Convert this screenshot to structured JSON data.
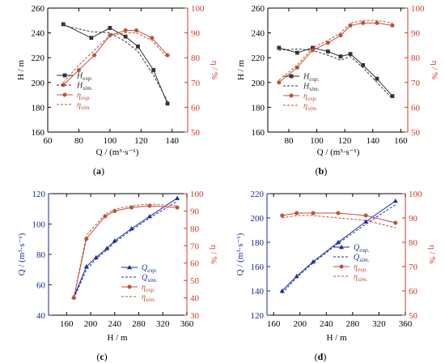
{
  "colors": {
    "axis": "#000000",
    "eta_axis": "#cc3b2b",
    "q_axis": "#1a2a8c",
    "h_exp": "#333333",
    "h_sim": "#333333",
    "eta_exp": "#c0503a",
    "eta_sim": "#c0503a",
    "q_exp": "#1a2aa0",
    "q_sim": "#1a2aa0"
  },
  "chart_data": [
    {
      "type": "line",
      "panel_label": "(a)",
      "xlabel": "Q / (m³·s⁻¹)",
      "ylabel_left": "H / m",
      "ylabel_right": "η / %",
      "xlim": [
        60,
        150
      ],
      "xticks": [
        60,
        80,
        100,
        120,
        140
      ],
      "ylim_left": [
        160,
        260
      ],
      "yticks_left": [
        160,
        180,
        200,
        220,
        240,
        260
      ],
      "ylim_right": [
        50,
        100
      ],
      "yticks_right": [
        50,
        60,
        70,
        80,
        90,
        100
      ],
      "legend_position": "bottom-left",
      "series": [
        {
          "name": "Hexp.",
          "label_main": "H",
          "label_sub": "exp.",
          "axis": "left",
          "color_key": "h_exp",
          "dashed": false,
          "marker": "square",
          "x": [
            70,
            88,
            100,
            110,
            118,
            128,
            137
          ],
          "y": [
            247,
            236,
            244,
            237,
            229,
            210,
            183
          ]
        },
        {
          "name": "Hsim.",
          "label_main": "H",
          "label_sub": "sim.",
          "axis": "left",
          "color_key": "h_sim",
          "dashed": true,
          "marker": "none",
          "x": [
            70,
            88,
            100,
            110,
            118,
            128,
            137
          ],
          "y": [
            246,
            241,
            240,
            233,
            225,
            206,
            185
          ]
        },
        {
          "name": "ηexp.",
          "label_main": "η",
          "label_sub": "exp.",
          "axis": "right",
          "color_key": "eta_exp",
          "dashed": false,
          "marker": "circle",
          "x": [
            70,
            80,
            90,
            100,
            110,
            117,
            127,
            137
          ],
          "y": [
            69,
            75,
            81,
            89,
            91,
            91,
            88,
            81
          ]
        },
        {
          "name": "ηsim.",
          "label_main": "η",
          "label_sub": "sim.",
          "axis": "right",
          "color_key": "eta_sim",
          "dashed": true,
          "marker": "none",
          "x": [
            70,
            80,
            90,
            100,
            110,
            117,
            127,
            137
          ],
          "y": [
            70,
            77,
            83,
            89,
            90,
            90,
            87,
            80
          ]
        }
      ]
    },
    {
      "type": "line",
      "panel_label": "(b)",
      "xlabel": "Q / (m³·s⁻¹)",
      "ylabel_left": "H / m",
      "ylabel_right": "η / %",
      "xlim": [
        65,
        165
      ],
      "xticks": [
        80,
        100,
        120,
        140,
        160
      ],
      "ylim_left": [
        160,
        260
      ],
      "yticks_left": [
        160,
        180,
        200,
        220,
        240,
        260
      ],
      "ylim_right": [
        50,
        100
      ],
      "yticks_right": [
        50,
        60,
        70,
        80,
        90,
        100
      ],
      "legend_position": "bottom-center",
      "series": [
        {
          "name": "Hexp.",
          "label_main": "H",
          "label_sub": "exp.",
          "axis": "left",
          "color_key": "h_exp",
          "dashed": false,
          "marker": "square",
          "x": [
            73,
            86,
            97,
            108,
            117,
            124,
            133,
            143,
            154
          ],
          "y": [
            228,
            224,
            228,
            225,
            221,
            223,
            214,
            203,
            189
          ]
        },
        {
          "name": "Hsim.",
          "label_main": "H",
          "label_sub": "sim.",
          "axis": "left",
          "color_key": "h_sim",
          "dashed": true,
          "marker": "none",
          "x": [
            73,
            86,
            97,
            108,
            117,
            124,
            133,
            143,
            154
          ],
          "y": [
            226,
            227,
            226,
            222,
            218,
            221,
            212,
            200,
            187
          ]
        },
        {
          "name": "ηexp.",
          "label_main": "η",
          "label_sub": "exp.",
          "axis": "right",
          "color_key": "eta_exp",
          "dashed": false,
          "marker": "circle",
          "x": [
            73,
            86,
            97,
            108,
            117,
            124,
            133,
            143,
            154
          ],
          "y": [
            70,
            76,
            83,
            86,
            89,
            93,
            94,
            94,
            93
          ]
        },
        {
          "name": "ηsim.",
          "label_main": "η",
          "label_sub": "sim.",
          "axis": "right",
          "color_key": "eta_sim",
          "dashed": true,
          "marker": "none",
          "x": [
            73,
            86,
            97,
            108,
            117,
            124,
            133,
            143,
            154
          ],
          "y": [
            71,
            77,
            84,
            87,
            90,
            94,
            95,
            95,
            94
          ]
        }
      ]
    },
    {
      "type": "line",
      "panel_label": "(c)",
      "xlabel": "H / m",
      "ylabel_left": "Q / (m³·s⁻¹)",
      "ylabel_right": "η / %",
      "xlim": [
        130,
        360
      ],
      "xticks": [
        160,
        200,
        240,
        280,
        320,
        360
      ],
      "ylim_left": [
        40,
        120
      ],
      "yticks_left": [
        40,
        60,
        80,
        100,
        120
      ],
      "ylim_right": [
        30,
        100
      ],
      "yticks_right": [
        30,
        40,
        50,
        60,
        70,
        80,
        90,
        100
      ],
      "legend_position": "bottom-right",
      "series": [
        {
          "name": "Qexp.",
          "label_main": "Q",
          "label_sub": "exp.",
          "axis": "left",
          "color_key": "q_exp",
          "dashed": false,
          "marker": "triangle",
          "x": [
            172,
            193,
            209,
            227,
            240,
            268,
            298,
            344
          ],
          "y": [
            52,
            72,
            78,
            84,
            89,
            97,
            105,
            117
          ]
        },
        {
          "name": "Qsim.",
          "label_main": "Q",
          "label_sub": "sim.",
          "axis": "left",
          "color_key": "q_sim",
          "dashed": true,
          "marker": "none",
          "x": [
            172,
            193,
            209,
            227,
            240,
            268,
            298,
            344
          ],
          "y": [
            51,
            70,
            77,
            83,
            88,
            96,
            104,
            115
          ]
        },
        {
          "name": "ηexp.",
          "label_main": "η",
          "label_sub": "exp.",
          "axis": "right",
          "color_key": "eta_exp",
          "dashed": false,
          "marker": "circle",
          "x": [
            172,
            193,
            224,
            240,
            268,
            298,
            344
          ],
          "y": [
            40,
            74,
            87,
            90,
            92,
            93,
            92
          ]
        },
        {
          "name": "ηsim.",
          "label_main": "η",
          "label_sub": "sim.",
          "axis": "right",
          "color_key": "eta_sim",
          "dashed": true,
          "marker": "none",
          "x": [
            172,
            193,
            224,
            240,
            268,
            298,
            344
          ],
          "y": [
            40,
            76,
            88,
            91,
            93,
            94,
            93
          ]
        }
      ]
    },
    {
      "type": "line",
      "panel_label": "(d)",
      "xlabel": "H / m",
      "ylabel_left": "Q / (m³·s⁻¹)",
      "ylabel_right": "η / %",
      "xlim": [
        150,
        360
      ],
      "xticks": [
        160,
        200,
        240,
        280,
        320,
        360
      ],
      "ylim_left": [
        120,
        220
      ],
      "yticks_left": [
        120,
        140,
        160,
        180,
        200,
        220
      ],
      "ylim_right": [
        50,
        100
      ],
      "yticks_right": [
        50,
        60,
        70,
        80,
        90,
        100
      ],
      "legend_position": "bottom-right",
      "series": [
        {
          "name": "Qexp.",
          "label_main": "Q",
          "label_sub": "exp.",
          "axis": "left",
          "color_key": "q_exp",
          "dashed": false,
          "marker": "triangle",
          "x": [
            173,
            195,
            220,
            258,
            300,
            345
          ],
          "y": [
            140,
            152,
            164,
            180,
            197,
            214
          ]
        },
        {
          "name": "Qsim.",
          "label_main": "Q",
          "label_sub": "sim.",
          "axis": "left",
          "color_key": "q_sim",
          "dashed": true,
          "marker": "none",
          "x": [
            173,
            195,
            220,
            258,
            300,
            345
          ],
          "y": [
            138,
            151,
            163,
            179,
            195,
            211
          ]
        },
        {
          "name": "ηexp.",
          "label_main": "η",
          "label_sub": "exp.",
          "axis": "right",
          "color_key": "eta_exp",
          "dashed": false,
          "marker": "circle",
          "x": [
            173,
            195,
            220,
            258,
            300,
            345
          ],
          "y": [
            91,
            92,
            92,
            92,
            91,
            88
          ]
        },
        {
          "name": "ηsim.",
          "label_main": "η",
          "label_sub": "sim.",
          "axis": "right",
          "color_key": "eta_sim",
          "dashed": true,
          "marker": "none",
          "x": [
            173,
            195,
            220,
            258,
            300,
            345
          ],
          "y": [
            90,
            91,
            91,
            90,
            89,
            86
          ]
        }
      ]
    }
  ]
}
